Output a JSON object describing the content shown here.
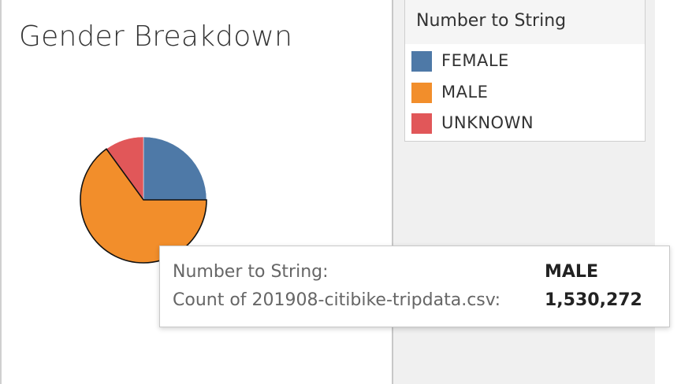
{
  "chart_data": {
    "type": "pie",
    "title": "Gender Breakdown",
    "categories": [
      "FEMALE",
      "MALE",
      "UNKNOWN"
    ],
    "values": [
      25,
      65,
      10
    ],
    "colors": [
      "#4e79a7",
      "#f28e2b",
      "#e15759"
    ],
    "highlighted": "MALE",
    "legend": {
      "title": "Number to String",
      "placement": "top-right"
    }
  },
  "tooltip": {
    "rows": [
      {
        "key": "Number to String:",
        "value": "MALE"
      },
      {
        "key": "Count of 201908-citibike-tripdata.csv:",
        "value": "1,530,272"
      }
    ]
  }
}
